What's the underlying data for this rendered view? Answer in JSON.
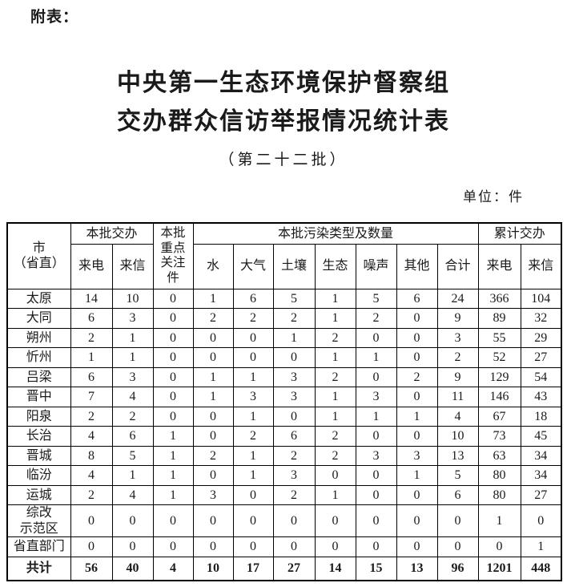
{
  "page": {
    "attachment_label": "附表：",
    "title": "中央第一生态环境保护督察组\n交办群众信访举报情况统计表",
    "subtitle": "（第二十二批）",
    "unit_label": "单位：件"
  },
  "table": {
    "header": {
      "city": "市\n（省直）",
      "batch_group": "本批交办",
      "key_group": "本批\n重点\n关注\n件",
      "pollution_group": "本批污染类型及数量",
      "cumulative_group": "累计交办"
    },
    "sub_headers": [
      "来电",
      "来信",
      "水",
      "大气",
      "土壤",
      "生态",
      "噪声",
      "其他",
      "合计",
      "来电",
      "来信"
    ],
    "rows": [
      {
        "name": "太原",
        "values": [
          14,
          10,
          0,
          1,
          6,
          5,
          1,
          5,
          6,
          24,
          366,
          104
        ]
      },
      {
        "name": "大同",
        "values": [
          6,
          3,
          0,
          2,
          2,
          2,
          1,
          2,
          0,
          9,
          89,
          32
        ]
      },
      {
        "name": "朔州",
        "values": [
          2,
          1,
          0,
          0,
          0,
          1,
          2,
          0,
          0,
          3,
          55,
          29
        ]
      },
      {
        "name": "忻州",
        "values": [
          1,
          1,
          0,
          0,
          0,
          0,
          1,
          1,
          0,
          2,
          52,
          27
        ]
      },
      {
        "name": "吕梁",
        "values": [
          6,
          3,
          0,
          1,
          1,
          3,
          2,
          0,
          2,
          9,
          129,
          54
        ]
      },
      {
        "name": "晋中",
        "values": [
          7,
          4,
          0,
          1,
          3,
          3,
          1,
          3,
          0,
          11,
          146,
          43
        ]
      },
      {
        "name": "阳泉",
        "values": [
          2,
          2,
          0,
          0,
          1,
          0,
          1,
          1,
          1,
          4,
          67,
          18
        ]
      },
      {
        "name": "长治",
        "values": [
          4,
          6,
          1,
          0,
          2,
          6,
          2,
          0,
          0,
          10,
          73,
          45
        ]
      },
      {
        "name": "晋城",
        "values": [
          8,
          5,
          1,
          2,
          1,
          2,
          2,
          3,
          3,
          13,
          63,
          34
        ]
      },
      {
        "name": "临汾",
        "values": [
          4,
          1,
          1,
          0,
          1,
          3,
          0,
          0,
          1,
          5,
          80,
          34
        ]
      },
      {
        "name": "运城",
        "values": [
          2,
          4,
          1,
          3,
          0,
          2,
          1,
          0,
          0,
          6,
          80,
          27
        ]
      },
      {
        "name": "综改\n示范区",
        "tall": true,
        "values": [
          0,
          0,
          0,
          0,
          0,
          0,
          0,
          0,
          0,
          0,
          1,
          0
        ]
      },
      {
        "name": "省直部门",
        "values": [
          0,
          0,
          0,
          0,
          0,
          0,
          0,
          0,
          0,
          0,
          0,
          1
        ]
      },
      {
        "name": "共计",
        "bold": true,
        "values": [
          56,
          40,
          4,
          10,
          17,
          27,
          14,
          15,
          13,
          96,
          1201,
          448
        ]
      }
    ]
  }
}
